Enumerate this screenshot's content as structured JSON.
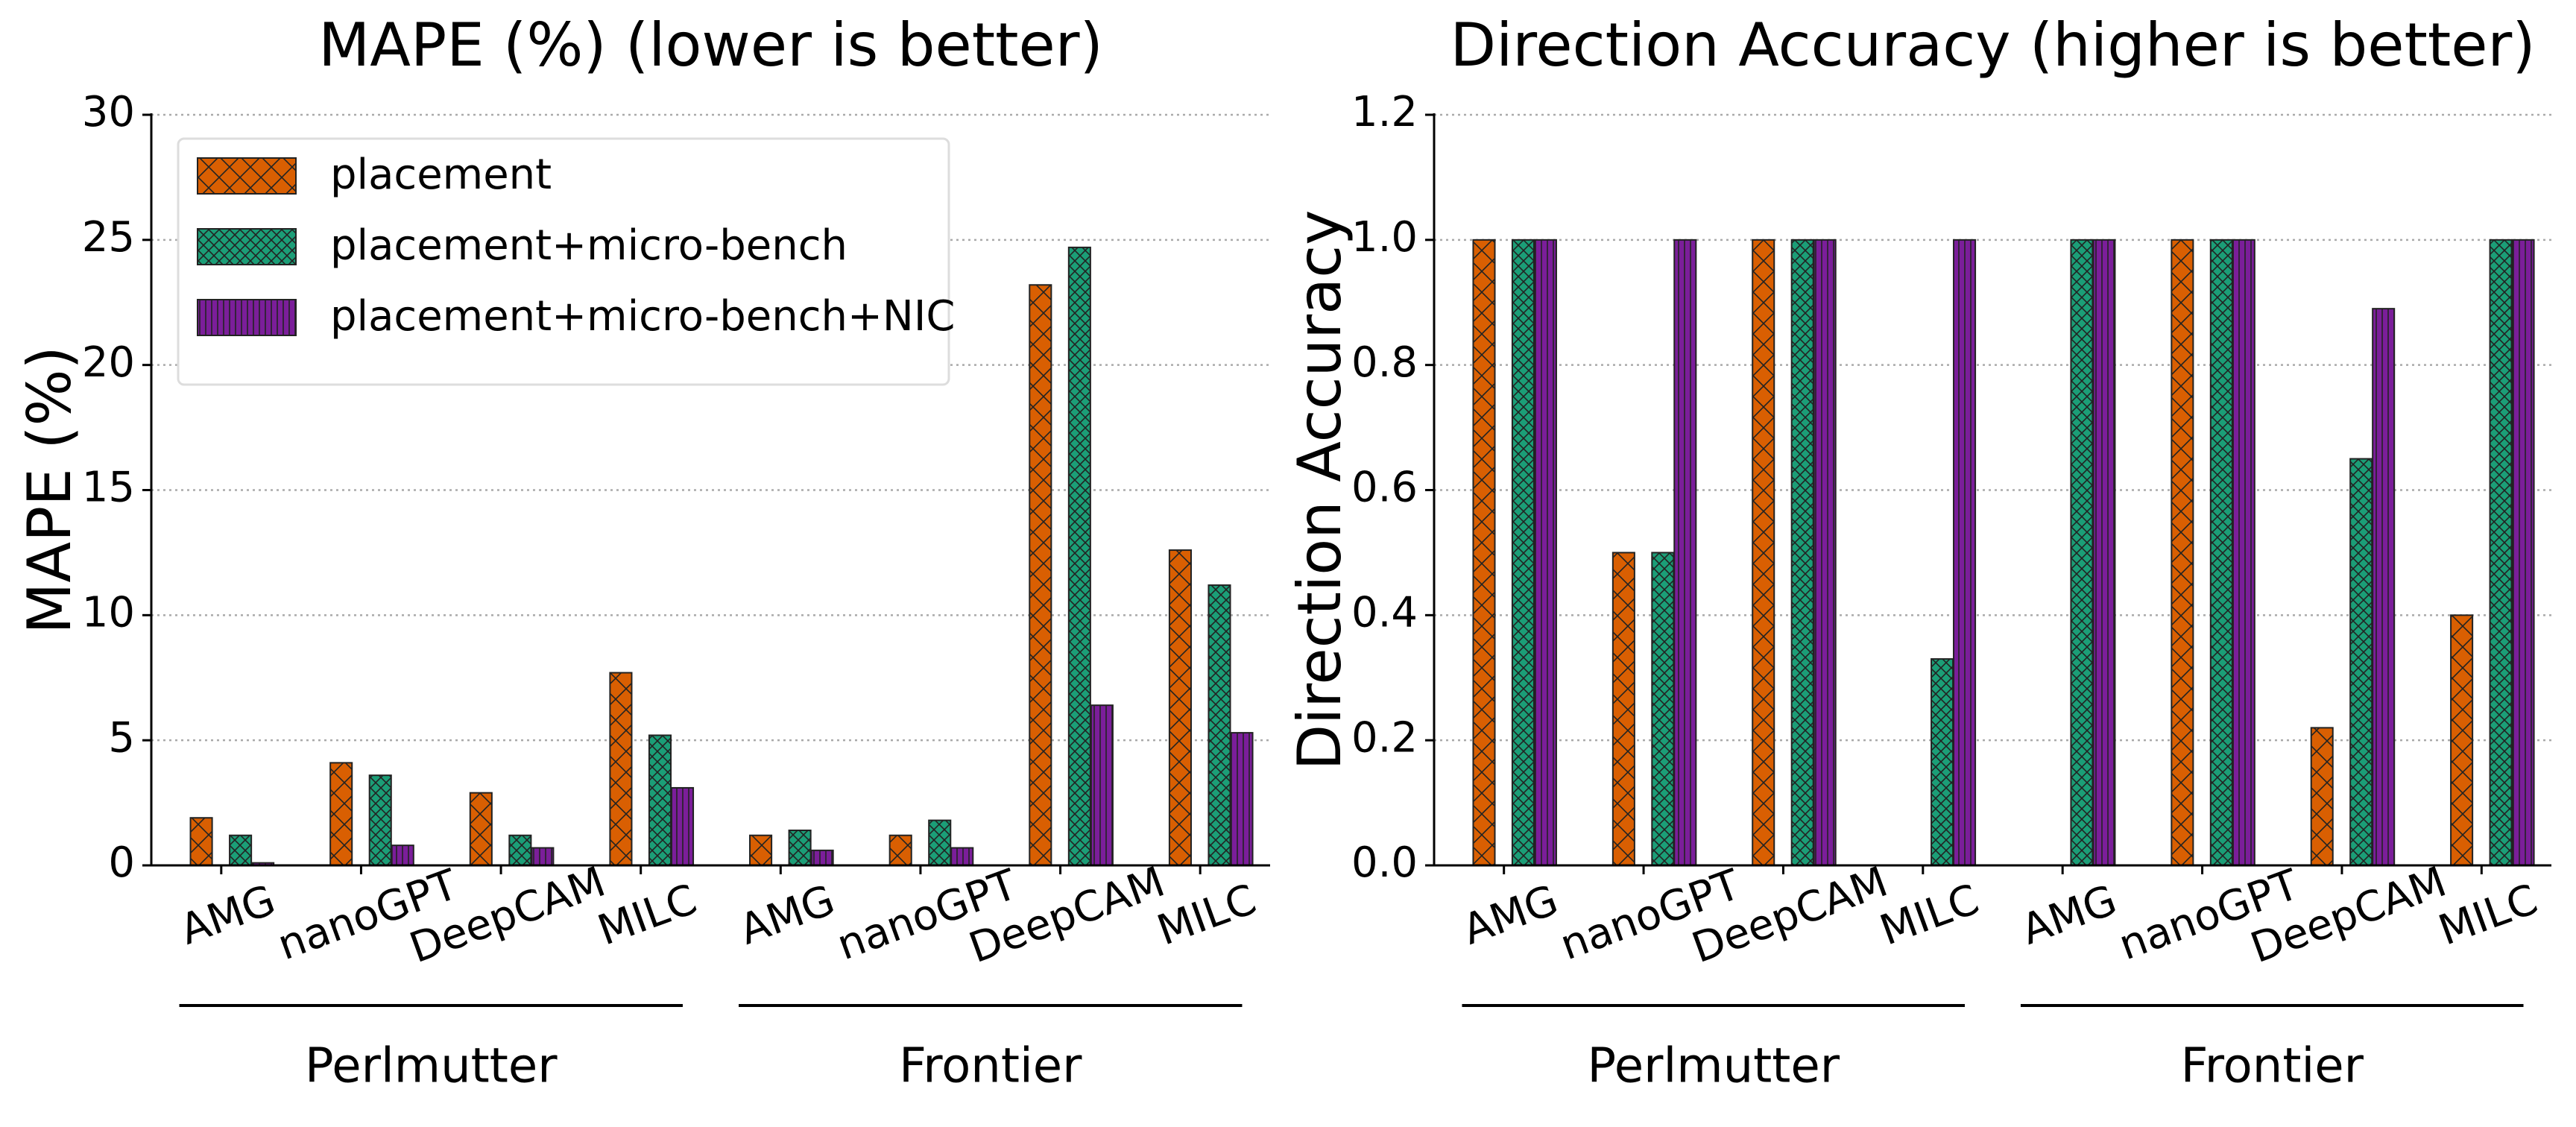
{
  "chart_data": [
    {
      "type": "bar",
      "title": "MAPE (%) (lower is better)",
      "y_label": "MAPE (%)",
      "categories": [
        "AMG",
        "nanoGPT",
        "DeepCAM",
        "MILC",
        "AMG",
        "nanoGPT",
        "DeepCAM",
        "MILC"
      ],
      "groups": [
        "Perlmutter",
        "Frontier"
      ],
      "series": [
        {
          "name": "placement",
          "color": "#d95f02",
          "values": [
            1.9,
            4.1,
            2.9,
            7.7,
            1.2,
            1.2,
            23.2,
            12.6
          ]
        },
        {
          "name": "placement+micro-bench",
          "color": "#1b9e77",
          "values": [
            1.2,
            3.6,
            1.2,
            5.2,
            1.4,
            1.8,
            24.7,
            11.2
          ]
        },
        {
          "name": "placement+micro-bench+NIC",
          "color": "#7b1e9a",
          "values": [
            0.1,
            0.8,
            0.7,
            3.1,
            0.6,
            0.7,
            6.4,
            5.3
          ]
        }
      ],
      "ylim": [
        0,
        30
      ],
      "yticks": [
        0,
        5,
        10,
        15,
        20,
        25,
        30
      ],
      "grid": true,
      "legend": "upper left"
    },
    {
      "type": "bar",
      "title": "Direction Accuracy (higher is better)",
      "y_label": "Direction Accuracy",
      "categories": [
        "AMG",
        "nanoGPT",
        "DeepCAM",
        "MILC",
        "AMG",
        "nanoGPT",
        "DeepCAM",
        "MILC"
      ],
      "groups": [
        "Perlmutter",
        "Frontier"
      ],
      "series": [
        {
          "color": "#d95f02",
          "values": [
            1.0,
            0.5,
            1.0,
            0,
            0,
            1.0,
            0.22,
            0.4
          ]
        },
        {
          "color": "#1b9e77",
          "values": [
            1.0,
            0.5,
            1.0,
            0.33,
            1.0,
            1.0,
            0.65,
            1.0
          ]
        },
        {
          "color": "#7b1e9a",
          "values": [
            1.0,
            1.0,
            1.0,
            1.0,
            1.0,
            1.0,
            0.89,
            1.0
          ]
        }
      ],
      "ylim": [
        0,
        1.2
      ],
      "yticks": [
        {
          "value": 0,
          "label": "0.0"
        },
        0.2,
        0.4,
        0.6,
        0.8,
        {
          "value": 1,
          "label": "1.0"
        },
        1.2
      ],
      "grid": true
    }
  ]
}
